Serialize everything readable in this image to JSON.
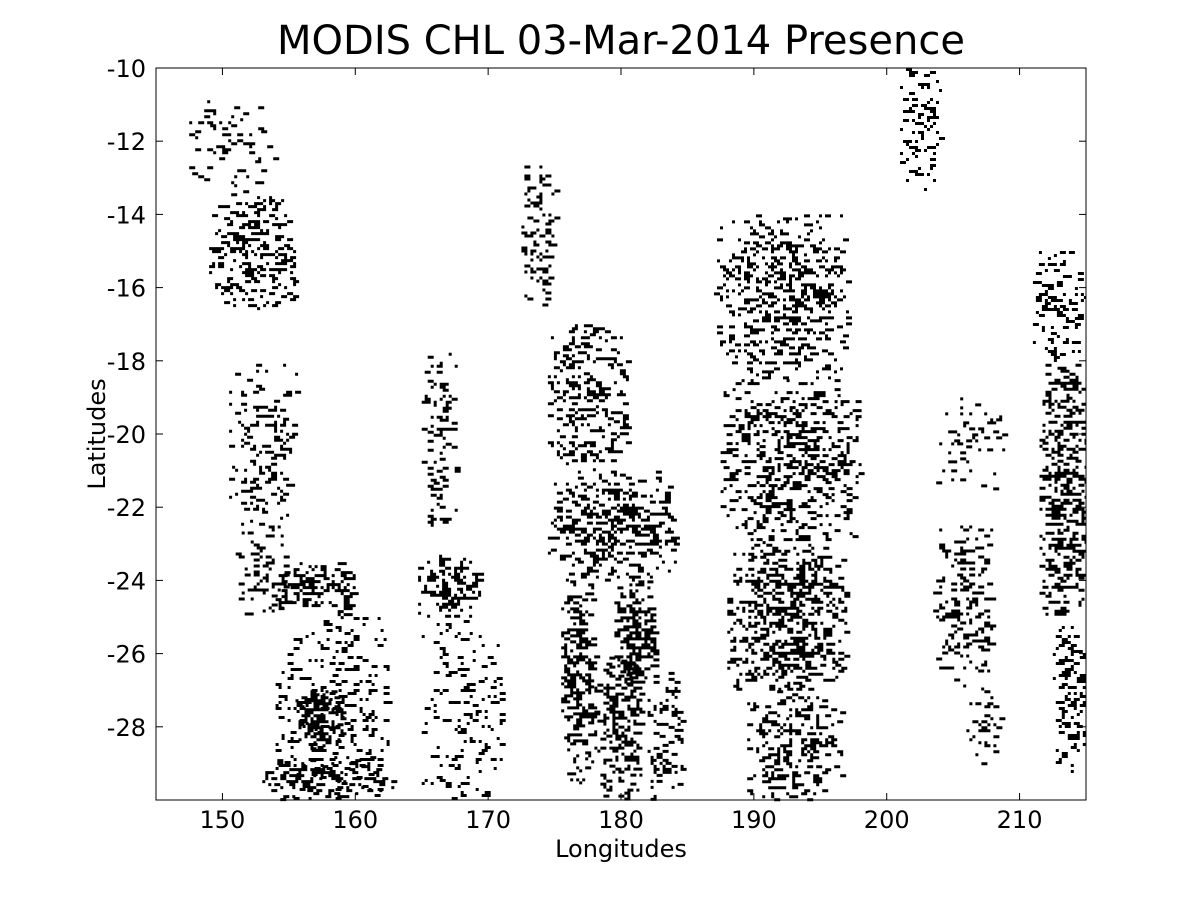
{
  "chart_data": {
    "type": "heatmap",
    "title": "MODIS CHL 03-Mar-2014 Presence",
    "xlabel": "Longitudes",
    "ylabel": "Latitudes",
    "xlim": [
      145,
      215
    ],
    "ylim": [
      -30,
      -10
    ],
    "xticks": [
      150,
      160,
      170,
      180,
      190,
      200,
      210
    ],
    "yticks": [
      -10,
      -12,
      -14,
      -16,
      -18,
      -20,
      -22,
      -24,
      -26,
      -28
    ],
    "colormap": {
      "absent": "#ffffff",
      "present": "#000000"
    },
    "grid": false,
    "presence_regions": [
      {
        "lon": [
          147.5,
          154
        ],
        "lat": [
          -10.8,
          -13.5
        ],
        "density": 0.12
      },
      {
        "lon": [
          149,
          155.5
        ],
        "lat": [
          -13.5,
          -16.6
        ],
        "density": 0.28
      },
      {
        "lon": [
          150.5,
          155.5
        ],
        "lat": [
          -18,
          -22.5
        ],
        "density": 0.2
      },
      {
        "lon": [
          151,
          155
        ],
        "lat": [
          -22.5,
          -25
        ],
        "density": 0.2
      },
      {
        "lon": [
          154,
          158
        ],
        "lat": [
          -23.5,
          -24.8
        ],
        "density": 0.5
      },
      {
        "lon": [
          158,
          160
        ],
        "lat": [
          -23.5,
          -25
        ],
        "density": 0.5
      },
      {
        "lon": [
          154,
          162.5
        ],
        "lat": [
          -25,
          -30
        ],
        "density": 0.18
      },
      {
        "lon": [
          155.5,
          159
        ],
        "lat": [
          -27,
          -28.6
        ],
        "density": 0.55
      },
      {
        "lon": [
          153,
          163
        ],
        "lat": [
          -28.8,
          -30
        ],
        "density": 0.32
      },
      {
        "lon": [
          165,
          167.5
        ],
        "lat": [
          -17.7,
          -22.5
        ],
        "density": 0.22
      },
      {
        "lon": [
          164.5,
          169.5
        ],
        "lat": [
          -23.3,
          -25
        ],
        "density": 0.38
      },
      {
        "lon": [
          165,
          171
        ],
        "lat": [
          -25,
          -30
        ],
        "density": 0.14
      },
      {
        "lon": [
          172.5,
          175
        ],
        "lat": [
          -12.5,
          -16.5
        ],
        "density": 0.25
      },
      {
        "lon": [
          174.5,
          180.5
        ],
        "lat": [
          -17,
          -21
        ],
        "density": 0.3
      },
      {
        "lon": [
          174.5,
          184
        ],
        "lat": [
          -21,
          -24
        ],
        "density": 0.35
      },
      {
        "lon": [
          175.5,
          178
        ],
        "lat": [
          -24,
          -29.5
        ],
        "density": 0.45
      },
      {
        "lon": [
          178,
          181.5
        ],
        "lat": [
          -26,
          -30
        ],
        "density": 0.38
      },
      {
        "lon": [
          179.5,
          182.5
        ],
        "lat": [
          -24,
          -26.8
        ],
        "density": 0.55
      },
      {
        "lon": [
          182,
          184.5
        ],
        "lat": [
          -26.5,
          -30
        ],
        "density": 0.25
      },
      {
        "lon": [
          187,
          197
        ],
        "lat": [
          -14,
          -18.5
        ],
        "density": 0.3
      },
      {
        "lon": [
          187.5,
          198
        ],
        "lat": [
          -18.5,
          -23
        ],
        "density": 0.33
      },
      {
        "lon": [
          188,
          197
        ],
        "lat": [
          -23,
          -27
        ],
        "density": 0.4
      },
      {
        "lon": [
          189.5,
          196.5
        ],
        "lat": [
          -27,
          -30
        ],
        "density": 0.28
      },
      {
        "lon": [
          201,
          204
        ],
        "lat": [
          -10,
          -13.3
        ],
        "density": 0.25
      },
      {
        "lon": [
          203.5,
          209
        ],
        "lat": [
          -19,
          -21.5
        ],
        "density": 0.1
      },
      {
        "lon": [
          203.5,
          208
        ],
        "lat": [
          -22.5,
          -27
        ],
        "density": 0.24
      },
      {
        "lon": [
          206,
          208.5
        ],
        "lat": [
          -27,
          -29
        ],
        "density": 0.15
      },
      {
        "lon": [
          211,
          215
        ],
        "lat": [
          -15,
          -18
        ],
        "density": 0.2
      },
      {
        "lon": [
          211.5,
          215
        ],
        "lat": [
          -18,
          -25
        ],
        "density": 0.45
      },
      {
        "lon": [
          212.5,
          215
        ],
        "lat": [
          -25,
          -29.2
        ],
        "density": 0.25
      }
    ]
  }
}
